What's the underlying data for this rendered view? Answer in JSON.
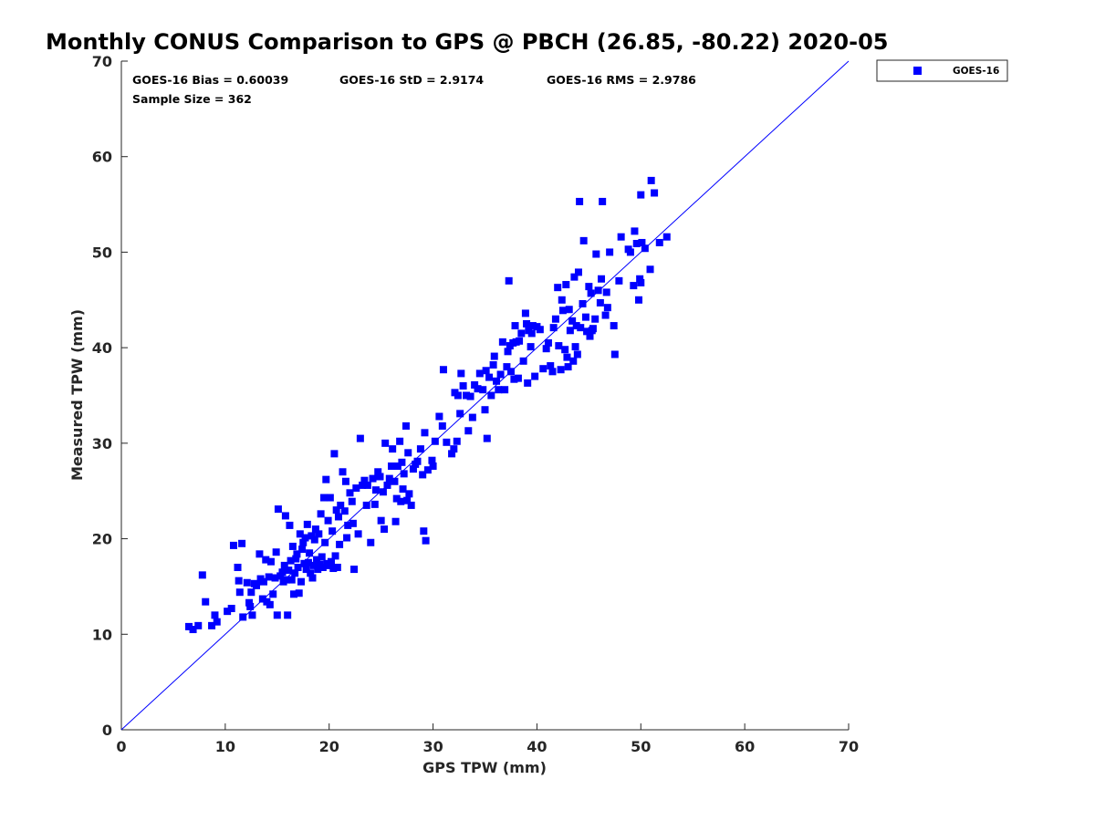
{
  "chart_data": {
    "type": "scatter",
    "title": "Monthly CONUS Comparison to GPS @ PBCH (26.85, -80.22) 2020-05",
    "xlabel": "GPS TPW (mm)",
    "ylabel": "Measured TPW (mm)",
    "xlim": [
      0,
      70
    ],
    "ylim": [
      0,
      70
    ],
    "xticks": [
      "0",
      "10",
      "20",
      "30",
      "40",
      "50",
      "60",
      "70"
    ],
    "yticks": [
      "0",
      "10",
      "20",
      "30",
      "40",
      "50",
      "60",
      "70"
    ],
    "grid": false,
    "legend_position": "outside-top-right",
    "marker_color": "#0000FF",
    "reference_line": {
      "from": [
        0,
        0
      ],
      "to": [
        70,
        70
      ],
      "color": "#0000FF"
    },
    "stats": {
      "bias": "GOES-16 Bias = 0.60039",
      "std": "GOES-16 StD = 2.9174",
      "rms": "GOES-16 RMS = 2.9786",
      "sample": "Sample Size = 362"
    },
    "series": [
      {
        "name": "GOES-16",
        "points": [
          [
            6.5,
            10.8
          ],
          [
            6.9,
            10.5
          ],
          [
            7.4,
            10.9
          ],
          [
            7.8,
            16.2
          ],
          [
            8.1,
            13.4
          ],
          [
            8.7,
            10.9
          ],
          [
            9.0,
            12.0
          ],
          [
            9.2,
            11.3
          ],
          [
            10.2,
            12.4
          ],
          [
            10.6,
            12.7
          ],
          [
            10.8,
            19.3
          ],
          [
            11.2,
            17.0
          ],
          [
            11.3,
            15.6
          ],
          [
            11.4,
            14.4
          ],
          [
            11.6,
            19.5
          ],
          [
            11.7,
            11.8
          ],
          [
            12.1,
            15.4
          ],
          [
            12.3,
            13.3
          ],
          [
            12.4,
            12.9
          ],
          [
            12.5,
            14.4
          ],
          [
            12.6,
            12.0
          ],
          [
            12.8,
            15.3
          ],
          [
            13.0,
            15.1
          ],
          [
            13.3,
            18.4
          ],
          [
            13.4,
            15.8
          ],
          [
            13.6,
            13.7
          ],
          [
            13.7,
            15.5
          ],
          [
            13.9,
            17.8
          ],
          [
            14.0,
            13.4
          ],
          [
            14.2,
            16.0
          ],
          [
            14.3,
            13.1
          ],
          [
            14.4,
            17.6
          ],
          [
            14.6,
            14.2
          ],
          [
            14.8,
            15.9
          ],
          [
            14.9,
            18.6
          ],
          [
            15.0,
            12.0
          ],
          [
            15.1,
            23.1
          ],
          [
            15.3,
            16.1
          ],
          [
            15.5,
            16.5
          ],
          [
            15.6,
            15.5
          ],
          [
            15.7,
            17.2
          ],
          [
            15.8,
            22.4
          ],
          [
            15.9,
            15.7
          ],
          [
            16.0,
            12.0
          ],
          [
            16.1,
            16.7
          ],
          [
            16.2,
            21.4
          ],
          [
            16.3,
            17.7
          ],
          [
            16.4,
            15.7
          ],
          [
            16.5,
            19.2
          ],
          [
            16.6,
            14.2
          ],
          [
            16.7,
            16.4
          ],
          [
            16.8,
            17.9
          ],
          [
            16.9,
            18.4
          ],
          [
            17.0,
            17.0
          ],
          [
            17.1,
            14.3
          ],
          [
            17.2,
            20.5
          ],
          [
            17.3,
            15.5
          ],
          [
            17.4,
            18.9
          ],
          [
            17.5,
            19.6
          ],
          [
            17.6,
            17.4
          ],
          [
            17.7,
            20.1
          ],
          [
            17.8,
            16.8
          ],
          [
            17.9,
            21.5
          ],
          [
            18.0,
            17.5
          ],
          [
            18.1,
            18.5
          ],
          [
            18.2,
            16.4
          ],
          [
            18.3,
            20.3
          ],
          [
            18.4,
            15.9
          ],
          [
            18.5,
            17.2
          ],
          [
            18.6,
            19.9
          ],
          [
            18.7,
            21.0
          ],
          [
            18.8,
            17.8
          ],
          [
            18.9,
            16.8
          ],
          [
            19.0,
            20.5
          ],
          [
            19.1,
            17.3
          ],
          [
            19.2,
            22.6
          ],
          [
            19.3,
            18.1
          ],
          [
            19.4,
            17.0
          ],
          [
            19.5,
            24.3
          ],
          [
            19.6,
            19.6
          ],
          [
            19.7,
            26.2
          ],
          [
            19.8,
            17.4
          ],
          [
            19.9,
            21.9
          ],
          [
            20.0,
            17.2
          ],
          [
            20.1,
            24.3
          ],
          [
            20.2,
            17.6
          ],
          [
            20.3,
            20.8
          ],
          [
            20.4,
            16.9
          ],
          [
            20.5,
            28.9
          ],
          [
            20.6,
            18.2
          ],
          [
            20.7,
            23.0
          ],
          [
            20.8,
            17.0
          ],
          [
            20.9,
            22.3
          ],
          [
            21.0,
            19.4
          ],
          [
            21.1,
            23.5
          ],
          [
            21.3,
            27.0
          ],
          [
            21.5,
            22.9
          ],
          [
            21.6,
            26.0
          ],
          [
            21.7,
            20.1
          ],
          [
            21.8,
            21.4
          ],
          [
            22.0,
            24.8
          ],
          [
            22.2,
            23.9
          ],
          [
            22.3,
            21.6
          ],
          [
            22.4,
            16.8
          ],
          [
            22.6,
            25.3
          ],
          [
            22.8,
            20.5
          ],
          [
            23.0,
            30.5
          ],
          [
            23.2,
            25.6
          ],
          [
            23.4,
            26.1
          ],
          [
            23.6,
            23.5
          ],
          [
            23.7,
            25.6
          ],
          [
            24.0,
            19.6
          ],
          [
            24.2,
            26.3
          ],
          [
            24.4,
            23.6
          ],
          [
            24.5,
            25.1
          ],
          [
            24.7,
            27.0
          ],
          [
            24.9,
            26.5
          ],
          [
            25.0,
            21.9
          ],
          [
            25.2,
            24.9
          ],
          [
            25.3,
            21.0
          ],
          [
            25.4,
            30.0
          ],
          [
            25.6,
            25.6
          ],
          [
            25.8,
            26.3
          ],
          [
            26.0,
            27.6
          ],
          [
            26.1,
            29.4
          ],
          [
            26.3,
            26.0
          ],
          [
            26.4,
            21.8
          ],
          [
            26.5,
            24.2
          ],
          [
            26.6,
            27.6
          ],
          [
            26.8,
            30.2
          ],
          [
            26.9,
            23.9
          ],
          [
            27.0,
            28.0
          ],
          [
            27.1,
            25.2
          ],
          [
            27.2,
            26.8
          ],
          [
            27.4,
            31.8
          ],
          [
            27.5,
            24.0
          ],
          [
            27.6,
            29.0
          ],
          [
            27.7,
            24.7
          ],
          [
            27.9,
            23.5
          ],
          [
            28.1,
            27.3
          ],
          [
            28.3,
            27.8
          ],
          [
            28.5,
            28.1
          ],
          [
            28.8,
            29.4
          ],
          [
            29.0,
            26.7
          ],
          [
            29.1,
            20.8
          ],
          [
            29.2,
            31.1
          ],
          [
            29.3,
            19.8
          ],
          [
            29.5,
            27.2
          ],
          [
            29.9,
            28.2
          ],
          [
            30.0,
            27.6
          ],
          [
            30.2,
            30.2
          ],
          [
            30.6,
            32.8
          ],
          [
            30.9,
            31.8
          ],
          [
            31.0,
            37.7
          ],
          [
            31.3,
            30.1
          ],
          [
            31.8,
            28.9
          ],
          [
            32.0,
            29.4
          ],
          [
            32.1,
            35.3
          ],
          [
            32.3,
            30.2
          ],
          [
            32.4,
            35.0
          ],
          [
            32.6,
            33.1
          ],
          [
            32.7,
            37.3
          ],
          [
            32.9,
            36.0
          ],
          [
            33.2,
            35.0
          ],
          [
            33.4,
            31.3
          ],
          [
            33.6,
            34.9
          ],
          [
            33.8,
            32.7
          ],
          [
            34.0,
            36.1
          ],
          [
            34.3,
            35.7
          ],
          [
            34.5,
            37.3
          ],
          [
            34.8,
            35.6
          ],
          [
            35.0,
            33.5
          ],
          [
            35.1,
            37.6
          ],
          [
            35.2,
            30.5
          ],
          [
            35.4,
            36.9
          ],
          [
            35.6,
            35.0
          ],
          [
            35.8,
            38.2
          ],
          [
            35.9,
            39.1
          ],
          [
            36.1,
            36.5
          ],
          [
            36.3,
            35.6
          ],
          [
            36.5,
            37.2
          ],
          [
            36.7,
            40.6
          ],
          [
            36.9,
            35.6
          ],
          [
            37.1,
            38.0
          ],
          [
            37.2,
            39.6
          ],
          [
            37.3,
            47.0
          ],
          [
            37.4,
            40.2
          ],
          [
            37.5,
            37.5
          ],
          [
            37.7,
            40.5
          ],
          [
            37.8,
            36.7
          ],
          [
            37.9,
            42.3
          ],
          [
            38.0,
            40.6
          ],
          [
            38.2,
            36.8
          ],
          [
            38.3,
            40.7
          ],
          [
            38.5,
            41.5
          ],
          [
            38.7,
            38.6
          ],
          [
            38.9,
            43.6
          ],
          [
            39.0,
            42.5
          ],
          [
            39.1,
            36.3
          ],
          [
            39.2,
            41.8
          ],
          [
            39.4,
            40.1
          ],
          [
            39.5,
            41.5
          ],
          [
            39.6,
            42.3
          ],
          [
            39.8,
            37.0
          ],
          [
            40.0,
            42.2
          ],
          [
            40.3,
            41.9
          ],
          [
            40.6,
            37.8
          ],
          [
            40.9,
            39.9
          ],
          [
            41.1,
            40.5
          ],
          [
            41.3,
            38.1
          ],
          [
            41.5,
            37.5
          ],
          [
            41.6,
            42.1
          ],
          [
            41.8,
            43.0
          ],
          [
            42.0,
            46.3
          ],
          [
            42.1,
            40.2
          ],
          [
            42.3,
            37.7
          ],
          [
            42.4,
            45.0
          ],
          [
            42.5,
            43.9
          ],
          [
            42.7,
            39.8
          ],
          [
            42.8,
            46.6
          ],
          [
            42.9,
            39.0
          ],
          [
            43.0,
            38.0
          ],
          [
            43.1,
            44.0
          ],
          [
            43.2,
            41.8
          ],
          [
            43.4,
            42.8
          ],
          [
            43.5,
            38.6
          ],
          [
            43.6,
            47.4
          ],
          [
            43.7,
            40.1
          ],
          [
            43.8,
            42.3
          ],
          [
            43.9,
            39.3
          ],
          [
            44.0,
            47.9
          ],
          [
            44.1,
            55.3
          ],
          [
            44.2,
            42.1
          ],
          [
            44.4,
            44.6
          ],
          [
            44.5,
            51.2
          ],
          [
            44.7,
            43.2
          ],
          [
            44.8,
            41.7
          ],
          [
            45.0,
            46.4
          ],
          [
            45.1,
            41.2
          ],
          [
            45.2,
            45.7
          ],
          [
            45.4,
            42.0
          ],
          [
            45.6,
            43.0
          ],
          [
            45.7,
            49.8
          ],
          [
            45.9,
            46.0
          ],
          [
            46.1,
            44.7
          ],
          [
            46.2,
            47.2
          ],
          [
            46.3,
            55.3
          ],
          [
            46.6,
            43.4
          ],
          [
            46.7,
            45.8
          ],
          [
            46.8,
            44.2
          ],
          [
            47.0,
            50.0
          ],
          [
            47.4,
            42.3
          ],
          [
            47.5,
            39.3
          ],
          [
            47.9,
            47.0
          ],
          [
            48.1,
            51.6
          ],
          [
            48.8,
            50.3
          ],
          [
            49.0,
            50.0
          ],
          [
            49.3,
            46.5
          ],
          [
            49.4,
            52.2
          ],
          [
            49.6,
            50.9
          ],
          [
            49.8,
            45.0
          ],
          [
            49.9,
            47.2
          ],
          [
            50.0,
            56.0
          ],
          [
            50.1,
            51.0
          ],
          [
            50.4,
            50.4
          ],
          [
            50.9,
            48.2
          ],
          [
            51.0,
            57.5
          ],
          [
            51.3,
            56.2
          ],
          [
            51.8,
            51.0
          ],
          [
            52.5,
            51.6
          ],
          [
            50.0,
            46.8
          ],
          [
            45.3,
            41.8
          ]
        ]
      }
    ]
  }
}
